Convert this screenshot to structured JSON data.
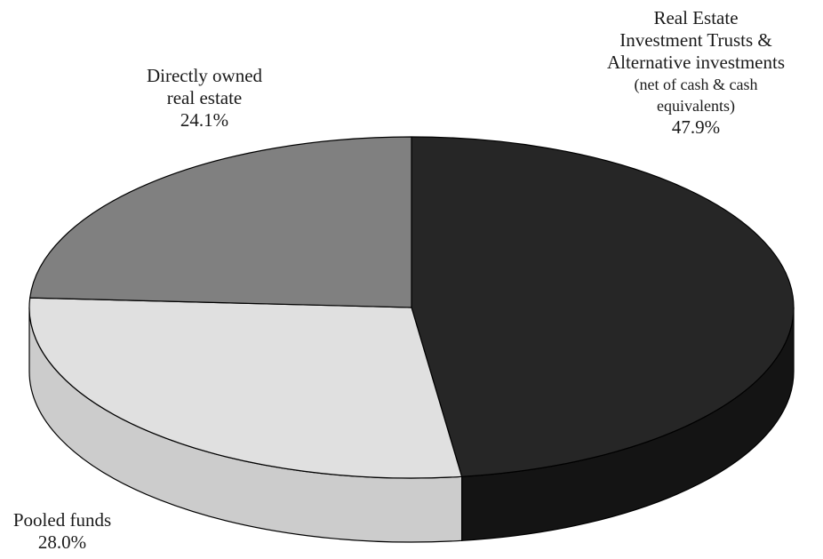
{
  "chart_data": {
    "type": "pie",
    "style": "3d",
    "slices": [
      {
        "name": "Real Estate Investment Trusts & Alternative investments",
        "label_lines": [
          "Real Estate",
          "Investment Trusts &",
          "Alternative investments"
        ],
        "note_lines": [
          "(net of cash & cash",
          "equivalents)"
        ],
        "value": 47.9,
        "value_label": "47.9%",
        "color": "#262626",
        "side_color": "#141414"
      },
      {
        "name": "Pooled funds",
        "label_lines": [
          "Pooled funds"
        ],
        "note_lines": [],
        "value": 28.0,
        "value_label": "28.0%",
        "color": "#e0e0e0",
        "side_color": "#cccccc"
      },
      {
        "name": "Directly owned real estate",
        "label_lines": [
          "Directly owned",
          "real estate"
        ],
        "note_lines": [],
        "value": 24.1,
        "value_label": "24.1%",
        "color": "#808080",
        "side_color": "#6a6a6a"
      }
    ]
  }
}
